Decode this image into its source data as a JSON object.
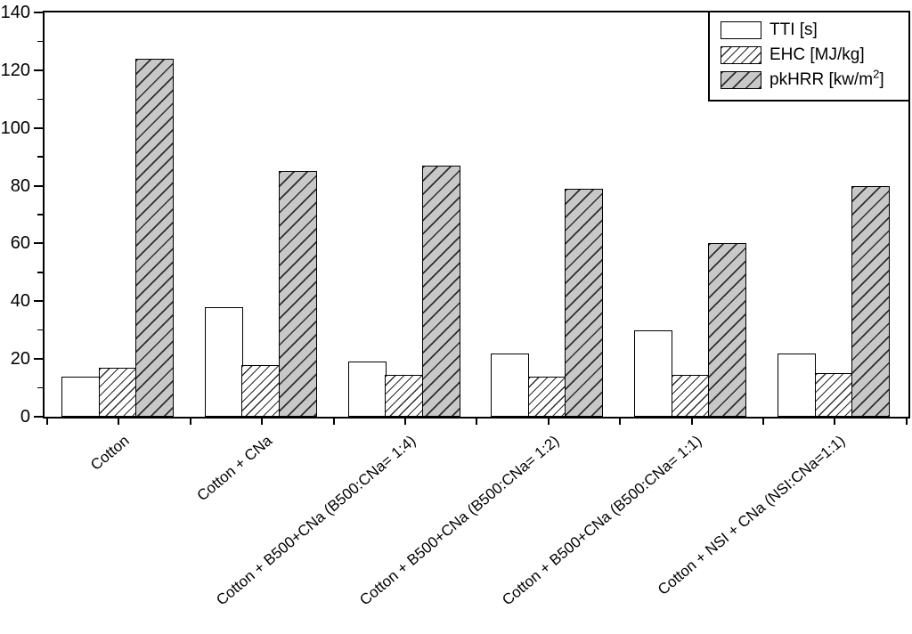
{
  "chart_data": {
    "type": "bar",
    "title": "",
    "xlabel": "",
    "ylabel": "",
    "ylim": [
      0,
      140
    ],
    "yticks_major": [
      0,
      20,
      40,
      60,
      80,
      100,
      120,
      140
    ],
    "yticks_minor": [
      10,
      30,
      50,
      70,
      90,
      110,
      130
    ],
    "grid": false,
    "legend_position": "top-right-inside",
    "categories": [
      "Cotton",
      "Cotton + CNa",
      "Cotton + B500+CNa (B500:CNa= 1:4)",
      "Cotton + B500+CNa (B500:CNa= 1:2)",
      "Cotton + B500+CNa (B500:CNa= 1:1)",
      "Cotton + NSI + CNa (NSI:CNa=1:1)"
    ],
    "series": [
      {
        "name": "TTI [s]",
        "label_parts": {
          "text": "TTI [s]",
          "sup": "",
          "end": ""
        },
        "style": "plain",
        "values": [
          14,
          38,
          19,
          22,
          30,
          22
        ]
      },
      {
        "name": "EHC [MJ/kg]",
        "label_parts": {
          "text": "EHC [MJ/kg]",
          "sup": "",
          "end": ""
        },
        "style": "hatch-light",
        "values": [
          17,
          18,
          14.5,
          14,
          14.5,
          15
        ]
      },
      {
        "name": "pkHRR [kw/m2]",
        "label_parts": {
          "text": "pkHRR [kw/m",
          "sup": "2",
          "end": "]"
        },
        "style": "hatch-gray",
        "values": [
          124,
          85,
          87,
          79,
          60,
          80
        ]
      }
    ],
    "colors": {
      "background": "#ffffff",
      "axis": "#000000",
      "bar_outline": "#000000",
      "bar_fill_plain": "#ffffff",
      "bar_fill_gray": "#c8c8c8",
      "hatch": "#2e2e2e"
    }
  }
}
